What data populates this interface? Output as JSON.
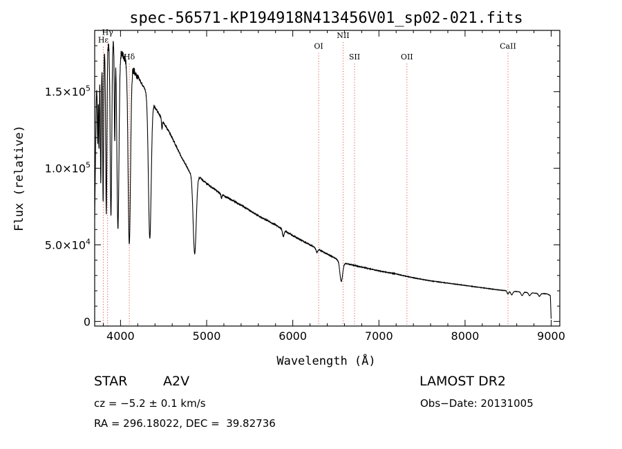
{
  "chart_data": {
    "type": "line",
    "title": "spec-56571-KP194918N413456V01_sp02-021.fits",
    "xlabel": "Wavelength (Å)",
    "ylabel": "Flux (relative)",
    "xlim": [
      3700,
      9100
    ],
    "ylim": [
      -3000,
      190000
    ],
    "x_ticks": [
      4000,
      5000,
      6000,
      7000,
      8000,
      9000
    ],
    "x_tick_labels": [
      "4000",
      "5000",
      "6000",
      "7000",
      "8000",
      "9000"
    ],
    "y_ticks": [
      0,
      50000,
      100000,
      150000
    ],
    "y_tick_labels": [
      {
        "mantissa": "0",
        "exp": ""
      },
      {
        "mantissa": "5.0×10",
        "exp": "4"
      },
      {
        "mantissa": "1.0×10",
        "exp": "5"
      },
      {
        "mantissa": "1.5×10",
        "exp": "5"
      }
    ],
    "line_markers": [
      {
        "label": "Hε",
        "x": 3800,
        "label_y": 182000
      },
      {
        "label": "Hγ",
        "x": 3850,
        "label_y": 187000
      },
      {
        "label": "Hδ",
        "x": 4102,
        "label_y": 171000
      },
      {
        "label": "OI",
        "x": 6300,
        "label_y": 178000
      },
      {
        "label": "NII",
        "x": 6584,
        "label_y": 185000
      },
      {
        "label": "SII",
        "x": 6717,
        "label_y": 171000
      },
      {
        "label": "OII",
        "x": 7325,
        "label_y": 171000
      },
      {
        "label": "CaII",
        "x": 8498,
        "label_y": 178000
      }
    ],
    "continuum": [
      [
        3700,
        68000
      ],
      [
        3720,
        150000
      ],
      [
        3760,
        162000
      ],
      [
        3800,
        172000
      ],
      [
        3850,
        180000
      ],
      [
        3900,
        184000
      ],
      [
        3950,
        180000
      ],
      [
        4000,
        176000
      ],
      [
        4050,
        172000
      ],
      [
        4100,
        168000
      ],
      [
        4200,
        160000
      ],
      [
        4300,
        150000
      ],
      [
        4400,
        140000
      ],
      [
        4500,
        130000
      ],
      [
        4600,
        120000
      ],
      [
        4700,
        108000
      ],
      [
        4800,
        98000
      ],
      [
        4900,
        95000
      ],
      [
        5000,
        90000
      ],
      [
        5200,
        82000
      ],
      [
        5400,
        76000
      ],
      [
        5600,
        69000
      ],
      [
        5800,
        63000
      ],
      [
        6000,
        56000
      ],
      [
        6200,
        50000
      ],
      [
        6400,
        44000
      ],
      [
        6600,
        38000
      ],
      [
        6800,
        35500
      ],
      [
        7000,
        33000
      ],
      [
        7200,
        31000
      ],
      [
        7400,
        28500
      ],
      [
        7600,
        26500
      ],
      [
        7800,
        25000
      ],
      [
        8000,
        23500
      ],
      [
        8200,
        22000
      ],
      [
        8400,
        20500
      ],
      [
        8600,
        19500
      ],
      [
        8800,
        18500
      ],
      [
        8950,
        18000
      ],
      [
        8990,
        17000
      ],
      [
        9000,
        1000
      ]
    ],
    "absorption_lines": [
      {
        "center": 3735,
        "depth": 0.25,
        "width": 4
      },
      {
        "center": 3750,
        "depth": 0.3,
        "width": 4
      },
      {
        "center": 3771,
        "depth": 0.45,
        "width": 5
      },
      {
        "center": 3798,
        "depth": 0.55,
        "width": 5
      },
      {
        "center": 3835,
        "depth": 0.6,
        "width": 7
      },
      {
        "center": 3889,
        "depth": 0.62,
        "width": 9
      },
      {
        "center": 3933,
        "depth": 0.35,
        "width": 5
      },
      {
        "center": 3970,
        "depth": 0.66,
        "width": 12
      },
      {
        "center": 4102,
        "depth": 0.7,
        "width": 14
      },
      {
        "center": 4340,
        "depth": 0.63,
        "width": 16
      },
      {
        "center": 4481,
        "depth": 0.05,
        "width": 5
      },
      {
        "center": 4861,
        "depth": 0.54,
        "width": 18
      },
      {
        "center": 5172,
        "depth": 0.03,
        "width": 6
      },
      {
        "center": 5890,
        "depth": 0.07,
        "width": 10
      },
      {
        "center": 6280,
        "depth": 0.05,
        "width": 10
      },
      {
        "center": 6563,
        "depth": 0.33,
        "width": 16
      },
      {
        "center": 8498,
        "depth": 0.1,
        "width": 10
      },
      {
        "center": 8542,
        "depth": 0.12,
        "width": 12
      },
      {
        "center": 8662,
        "depth": 0.12,
        "width": 12
      },
      {
        "center": 8750,
        "depth": 0.1,
        "width": 12
      },
      {
        "center": 8863,
        "depth": 0.1,
        "width": 12
      }
    ]
  },
  "info": {
    "object_type": "STAR",
    "subclass": "A2V",
    "survey": "LAMOST DR2",
    "cz": "cz = −5.2 ± 0.1 km/s",
    "obs_date": "Obs−Date: 20131005",
    "coords": "RA = 296.18022, DEC =  39.82736"
  },
  "colors": {
    "spectrum": "#000000",
    "marker_line": "#e05050",
    "axis": "#000000"
  }
}
